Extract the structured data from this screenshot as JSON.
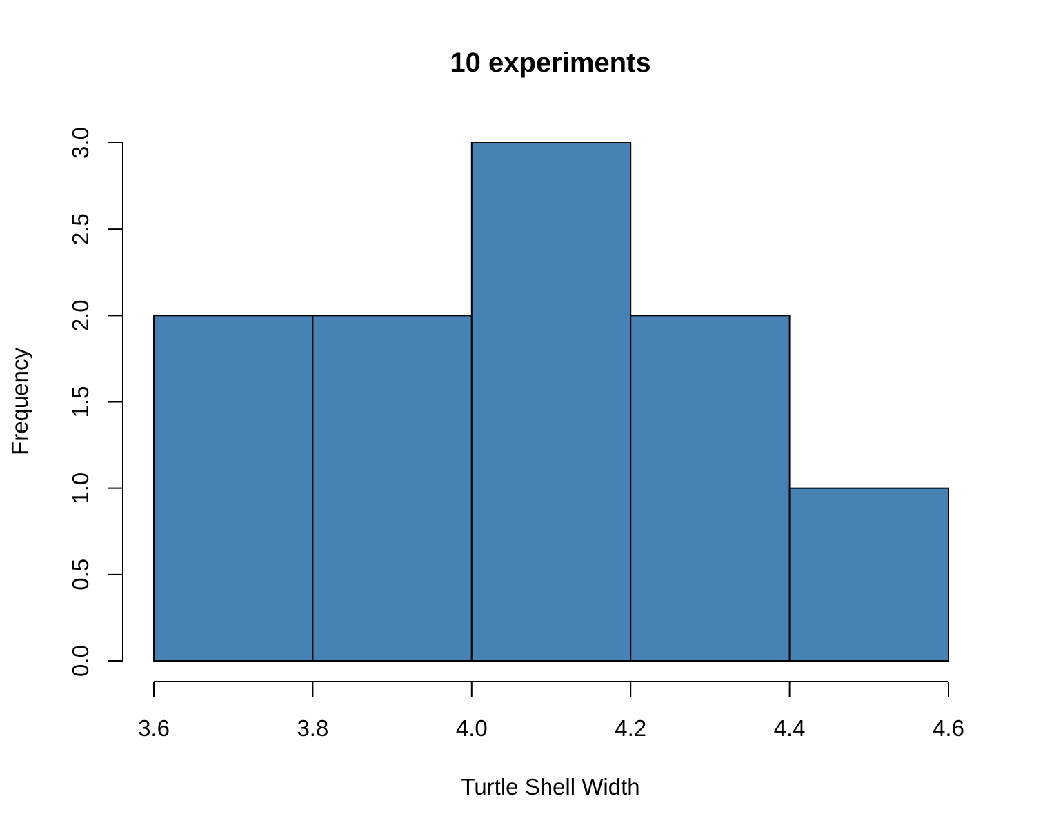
{
  "chart_data": {
    "type": "bar",
    "subtype": "histogram",
    "title": "10 experiments",
    "xlabel": "Turtle Shell Width",
    "ylabel": "Frequency",
    "bins": [
      {
        "from": 3.6,
        "to": 3.8,
        "count": 2
      },
      {
        "from": 3.8,
        "to": 4.0,
        "count": 2
      },
      {
        "from": 4.0,
        "to": 4.2,
        "count": 3
      },
      {
        "from": 4.2,
        "to": 4.4,
        "count": 2
      },
      {
        "from": 4.4,
        "to": 4.6,
        "count": 1
      }
    ],
    "xlim": [
      3.6,
      4.6
    ],
    "ylim": [
      0,
      3
    ],
    "x_ticks": [
      "3.6",
      "3.8",
      "4.0",
      "4.2",
      "4.4",
      "4.6"
    ],
    "y_ticks": [
      "0.0",
      "0.5",
      "1.0",
      "1.5",
      "2.0",
      "2.5",
      "3.0"
    ],
    "grid": false,
    "bar_color": "#4682B4",
    "edge_color": "#000000"
  }
}
